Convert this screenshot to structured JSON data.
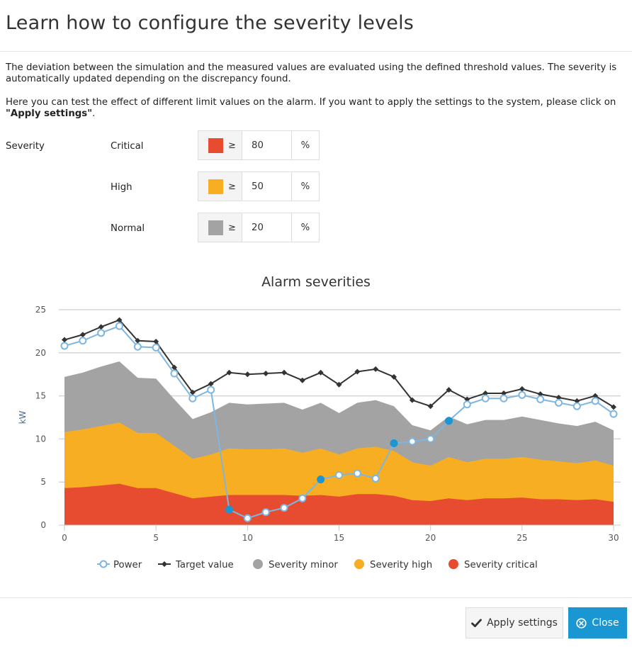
{
  "dialog": {
    "title": "Learn how to configure the severity levels",
    "paragraph1": "The deviation between the simulation and the measured values are evaluated using the defined threshold values. The severity is automatically updated depending on the discrepancy found.",
    "paragraph2_prefix": "Here you can test the effect of different limit values on the alarm. If you want to apply the settings to the system, please click on ",
    "paragraph2_bold": "\"Apply settings\"",
    "paragraph2_suffix": "."
  },
  "severity": {
    "label": "Severity",
    "levels": [
      {
        "name": "Critical",
        "operator": "≥",
        "value": "80",
        "unit": "%",
        "color": "#e84c30"
      },
      {
        "name": "High",
        "operator": "≥",
        "value": "50",
        "unit": "%",
        "color": "#f7ae22"
      },
      {
        "name": "Normal",
        "operator": "≥",
        "value": "20",
        "unit": "%",
        "color": "#a3a3a3"
      }
    ]
  },
  "chart_data": {
    "type": "line",
    "title": "Alarm severities",
    "xlabel": "",
    "ylabel": "kW",
    "xlim": [
      0,
      30
    ],
    "ylim": [
      0,
      25
    ],
    "x_ticks": [
      "0",
      "5",
      "10",
      "15",
      "20",
      "25",
      "30"
    ],
    "y_ticks": [
      "0",
      "5",
      "10",
      "15",
      "20",
      "25"
    ],
    "grid": "horizontal",
    "legend_position": "bottom",
    "x": [
      0,
      1,
      2,
      3,
      4,
      5,
      6,
      7,
      8,
      9,
      10,
      11,
      12,
      13,
      14,
      15,
      16,
      17,
      18,
      19,
      20,
      21,
      22,
      23,
      24,
      25,
      26,
      27,
      28,
      29,
      30
    ],
    "series": [
      {
        "name": "Power",
        "type": "line",
        "color": "#7db6e0",
        "values": [
          20.8,
          21.4,
          22.3,
          23.1,
          20.7,
          20.6,
          17.6,
          14.7,
          15.7,
          1.8,
          0.8,
          1.5,
          2.0,
          3.1,
          5.3,
          5.8,
          6.0,
          5.4,
          9.5,
          9.7,
          10.0,
          12.1,
          14.0,
          14.7,
          14.7,
          15.1,
          14.6,
          14.2,
          13.8,
          14.4,
          12.9
        ],
        "alarm_points_x": [
          9,
          14,
          18,
          21
        ]
      },
      {
        "name": "Target value",
        "type": "line",
        "color": "#333333",
        "values": [
          21.5,
          22.1,
          23.0,
          23.8,
          21.4,
          21.3,
          18.3,
          15.4,
          16.4,
          17.7,
          17.5,
          17.6,
          17.7,
          16.8,
          17.7,
          16.3,
          17.8,
          18.1,
          17.2,
          14.5,
          13.8,
          15.7,
          14.6,
          15.3,
          15.3,
          15.8,
          15.2,
          14.8,
          14.4,
          15.0,
          13.7
        ]
      },
      {
        "name": "Severity minor",
        "type": "area",
        "color": "#a3a3a3",
        "values": [
          17.2,
          17.7,
          18.4,
          19.0,
          17.1,
          17.0,
          14.6,
          12.3,
          13.1,
          14.2,
          14.0,
          14.1,
          14.2,
          13.4,
          14.2,
          13.0,
          14.2,
          14.5,
          13.8,
          11.6,
          11.0,
          12.6,
          11.7,
          12.2,
          12.2,
          12.6,
          12.2,
          11.8,
          11.5,
          12.0,
          11.0
        ]
      },
      {
        "name": "Severity high",
        "type": "area",
        "color": "#f7ae22",
        "values": [
          10.8,
          11.1,
          11.5,
          11.9,
          10.7,
          10.7,
          9.2,
          7.7,
          8.2,
          8.9,
          8.8,
          8.8,
          8.9,
          8.4,
          8.9,
          8.2,
          8.9,
          9.1,
          8.6,
          7.3,
          6.9,
          7.9,
          7.3,
          7.7,
          7.7,
          7.9,
          7.6,
          7.4,
          7.2,
          7.5,
          6.9
        ]
      },
      {
        "name": "Severity critical",
        "type": "area",
        "color": "#e84c30",
        "values": [
          4.3,
          4.4,
          4.6,
          4.8,
          4.3,
          4.3,
          3.7,
          3.1,
          3.3,
          3.5,
          3.5,
          3.5,
          3.5,
          3.4,
          3.5,
          3.3,
          3.6,
          3.6,
          3.4,
          2.9,
          2.8,
          3.1,
          2.9,
          3.1,
          3.1,
          3.2,
          3.0,
          3.0,
          2.9,
          3.0,
          2.7
        ]
      }
    ]
  },
  "footer": {
    "apply_label": "Apply settings",
    "close_label": "Close"
  },
  "icons": {
    "apply": "check-icon",
    "close": "close-circle-icon"
  }
}
